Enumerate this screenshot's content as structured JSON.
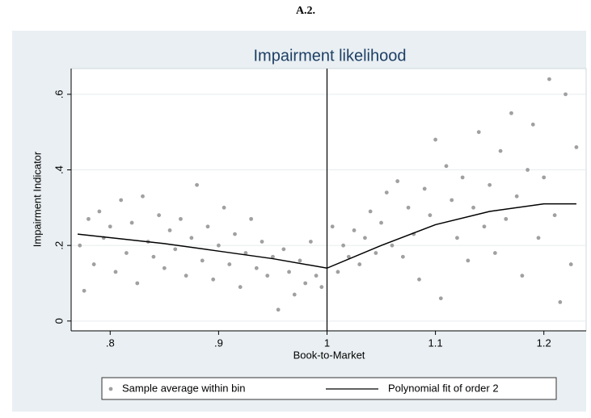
{
  "heading": "A.2.",
  "chart_data": {
    "type": "scatter",
    "title": "Impairment likelihood",
    "x_label": "Book-to-Market",
    "y_label": "Impairment Indicator",
    "xlim": [
      0.764,
      1.239
    ],
    "ylim": [
      -0.026,
      0.668
    ],
    "xticks": [
      {
        "value": 0.8,
        "label": ".8"
      },
      {
        "value": 0.9,
        "label": ".9"
      },
      1,
      1.1,
      1.2
    ],
    "yticks": [
      0,
      {
        "value": 0.2,
        "label": ".2"
      },
      {
        "value": 0.4,
        "label": ".4"
      },
      {
        "value": 0.6,
        "label": ".6"
      }
    ],
    "grid": true,
    "vline": 1,
    "series": [
      {
        "name": "Sample average within bin",
        "color": "#a0a0a0",
        "kind": "points",
        "x": [
          0.772,
          0.776,
          0.78,
          0.785,
          0.79,
          0.794,
          0.8,
          0.805,
          0.81,
          0.815,
          0.82,
          0.825,
          0.83,
          0.835,
          0.84,
          0.845,
          0.85,
          0.855,
          0.86,
          0.865,
          0.87,
          0.875,
          0.88,
          0.885,
          0.89,
          0.895,
          0.9,
          0.905,
          0.91,
          0.915,
          0.92,
          0.925,
          0.93,
          0.935,
          0.94,
          0.945,
          0.95,
          0.955,
          0.96,
          0.965,
          0.97,
          0.975,
          0.98,
          0.985,
          0.99,
          0.995,
          1.005,
          1.01,
          1.015,
          1.02,
          1.025,
          1.03,
          1.035,
          1.04,
          1.045,
          1.05,
          1.055,
          1.06,
          1.065,
          1.07,
          1.075,
          1.08,
          1.085,
          1.09,
          1.095,
          1.1,
          1.105,
          1.11,
          1.115,
          1.12,
          1.125,
          1.13,
          1.135,
          1.14,
          1.145,
          1.15,
          1.155,
          1.16,
          1.165,
          1.17,
          1.175,
          1.18,
          1.185,
          1.19,
          1.195,
          1.2,
          1.205,
          1.21,
          1.215,
          1.22,
          1.225,
          1.23
        ],
        "values": [
          0.2,
          0.08,
          0.27,
          0.15,
          0.29,
          0.22,
          0.25,
          0.13,
          0.32,
          0.18,
          0.26,
          0.1,
          0.33,
          0.21,
          0.17,
          0.28,
          0.14,
          0.24,
          0.19,
          0.27,
          0.12,
          0.22,
          0.36,
          0.16,
          0.25,
          0.11,
          0.2,
          0.3,
          0.15,
          0.23,
          0.09,
          0.18,
          0.27,
          0.14,
          0.21,
          0.12,
          0.17,
          0.03,
          0.19,
          0.13,
          0.07,
          0.16,
          0.1,
          0.21,
          0.12,
          0.09,
          0.25,
          0.13,
          0.2,
          0.17,
          0.24,
          0.15,
          0.22,
          0.29,
          0.18,
          0.26,
          0.34,
          0.2,
          0.37,
          0.17,
          0.3,
          0.23,
          0.11,
          0.35,
          0.28,
          0.48,
          0.06,
          0.41,
          0.32,
          0.22,
          0.38,
          0.16,
          0.3,
          0.5,
          0.25,
          0.36,
          0.18,
          0.45,
          0.27,
          0.55,
          0.33,
          0.12,
          0.4,
          0.52,
          0.22,
          0.38,
          0.64,
          0.28,
          0.05,
          0.6,
          0.15,
          0.46
        ]
      },
      {
        "name": "Polynomial fit of order 2",
        "color": "#000000",
        "kind": "line",
        "x": [
          0.77,
          0.85,
          0.9,
          0.95,
          1.0,
          1.05,
          1.1,
          1.15,
          1.2,
          1.23
        ],
        "values": [
          0.23,
          0.205,
          0.185,
          0.165,
          0.14,
          0.2,
          0.255,
          0.29,
          0.31,
          0.31
        ]
      }
    ]
  }
}
